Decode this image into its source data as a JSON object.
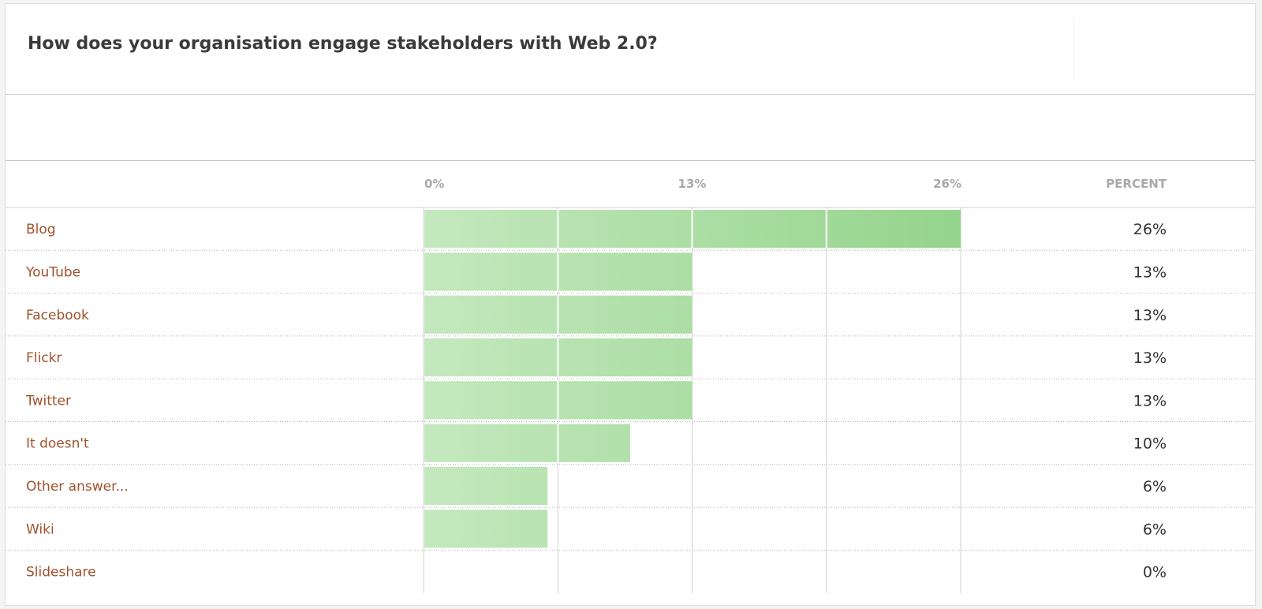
{
  "chart_data": {
    "type": "bar",
    "orientation": "horizontal",
    "title": "How does your organisation engage stakeholders with Web 2.0?",
    "categories": [
      "Blog",
      "YouTube",
      "Facebook",
      "Flickr",
      "Twitter",
      "It doesn't",
      "Other answer...",
      "Wiki",
      "Slideshare"
    ],
    "values": [
      26,
      13,
      13,
      13,
      13,
      10,
      6,
      6,
      0
    ],
    "value_labels": [
      "26%",
      "13%",
      "13%",
      "13%",
      "13%",
      "10%",
      "6%",
      "6%",
      "0%"
    ],
    "x_ticks": [
      "0%",
      "13%",
      "26%"
    ],
    "xlim": [
      0,
      26
    ],
    "value_column_header": "PERCENT",
    "grid": true,
    "colors": {
      "bar_light": "#c4e8be",
      "bar_dark": "#94d48b",
      "category_text": "#a0522d"
    }
  }
}
